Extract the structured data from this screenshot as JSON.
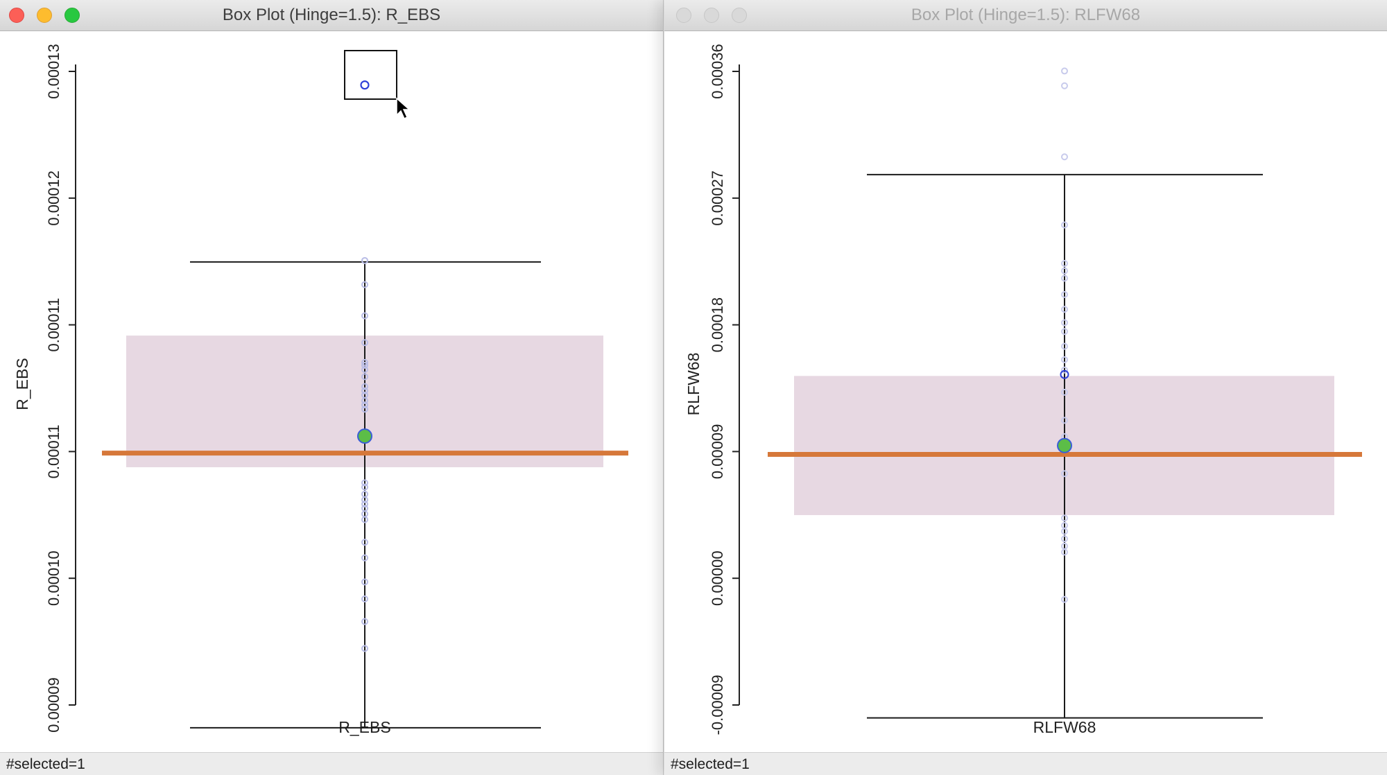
{
  "windows": [
    {
      "id": "left",
      "title": "Box Plot (Hinge=1.5): R_EBS",
      "active": true,
      "status": "#selected=1",
      "chart_data": {
        "type": "box",
        "variable": "R_EBS",
        "hinge": 1.5,
        "xlabel": "R_EBS",
        "ylabel": "R_EBS",
        "y_ticks": [
          "0.00009",
          "0.00010",
          "0.00011",
          "0.00011",
          "0.00012",
          "0.00013"
        ],
        "ylim": [
          8.83e-05,
          0.0001355
        ],
        "whisker_low": 8.87e-05,
        "whisker_high": 0.0001216,
        "q1": 0.0001071,
        "q3": 0.0001164,
        "median": 0.0001081,
        "mean": 0.0001093,
        "points": [
          0.0001217,
          0.00012,
          0.0001178,
          0.0001159,
          0.0001145,
          0.0001143,
          0.000114,
          0.0001135,
          0.0001128,
          0.0001125,
          0.0001122,
          0.0001118,
          0.0001115,
          0.0001112,
          0.0001093,
          0.000106,
          0.0001057,
          0.0001052,
          0.0001048,
          0.0001045,
          0.0001042,
          0.0001038,
          0.0001034,
          0.0001018,
          0.0001007,
          9.9e-05,
          9.78e-05,
          9.62e-05,
          9.43e-05
        ],
        "outliers": [
          0.0001341
        ],
        "selected": [
          0.0001341
        ],
        "colors": {
          "box": "#e7d8e2",
          "whisker": "#1a1a1a",
          "median": "#d6783a",
          "mean": "#5cbd47",
          "point": "#b9bde6",
          "selected": "#2d3fd8"
        }
      }
    },
    {
      "id": "right",
      "title": "Box Plot (Hinge=1.5): RLFW68",
      "active": false,
      "status": "#selected=1",
      "chart_data": {
        "type": "box",
        "variable": "RLFW68",
        "hinge": 1.5,
        "xlabel": "RLFW68",
        "ylabel": "RLFW68",
        "y_ticks": [
          "-0.00009",
          "0.00000",
          "0.00009",
          "0.00018",
          "0.00027",
          "0.00036"
        ],
        "ylim": [
          -9e-05,
          0.00036
        ],
        "whisker_low": -8e-05,
        "whisker_high": 0.000287,
        "q1": 5.7e-05,
        "q3": 0.000151,
        "median": 9.8e-05,
        "mean": 0.000104,
        "points": [
          0.000357,
          0.000347,
          0.000299,
          0.000253,
          0.000227,
          0.000222,
          0.000217,
          0.000206,
          0.000196,
          0.000187,
          0.000181,
          0.000171,
          0.000162,
          0.000155,
          0.00014,
          0.000121,
          0.00011,
          8.5e-05,
          5.5e-05,
          5e-05,
          4.6e-05,
          4.1e-05,
          3.6e-05,
          3.2e-05,
          0.0
        ],
        "outliers": [],
        "selected": [
          0.000152
        ],
        "colors": {
          "box": "#e7d8e2",
          "whisker": "#1a1a1a",
          "median": "#d6783a",
          "mean": "#5cbd47",
          "point": "#c8cbec",
          "selected": "#2d3fd8"
        }
      }
    }
  ]
}
